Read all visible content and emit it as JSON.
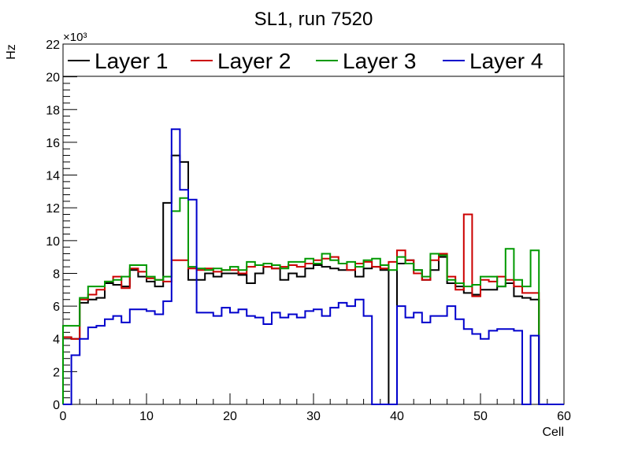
{
  "chart_data": {
    "type": "line",
    "title": "SL1, run 7520",
    "xlabel": "Cell",
    "ylabel": "Hz",
    "y_multiplier": "×10³",
    "xlim": [
      0,
      60
    ],
    "ylim": [
      0,
      22
    ],
    "x_ticks": [
      0,
      10,
      20,
      30,
      40,
      50,
      60
    ],
    "y_ticks": [
      0,
      2,
      4,
      6,
      8,
      10,
      12,
      14,
      16,
      18,
      20,
      22
    ],
    "bin_width": 1,
    "x_start": 0,
    "legend_position": "top",
    "series": [
      {
        "name": "Layer 1",
        "color": "#000000",
        "values": [
          4.1,
          4.0,
          6.2,
          6.4,
          6.5,
          7.4,
          7.3,
          7.2,
          8.2,
          7.8,
          7.5,
          7.2,
          12.3,
          15.2,
          14.8,
          7.6,
          7.6,
          8.0,
          7.8,
          8.0,
          8.0,
          7.9,
          7.4,
          8.0,
          8.4,
          8.3,
          7.6,
          8.0,
          7.8,
          8.3,
          8.5,
          8.4,
          8.3,
          8.2,
          8.2,
          7.8,
          8.3,
          8.4,
          8.2,
          0.0,
          8.6,
          8.8,
          8.2,
          7.6,
          8.2,
          9.0,
          7.4,
          7.2,
          6.8,
          6.7,
          7.0,
          7.0,
          7.2,
          7.4,
          6.6,
          6.5,
          6.4,
          0,
          0,
          0
        ]
      },
      {
        "name": "Layer 2",
        "color": "#cc0000",
        "values": [
          4.1,
          4.0,
          6.4,
          6.7,
          7.0,
          7.5,
          7.8,
          7.1,
          8.3,
          8.1,
          7.7,
          7.6,
          7.5,
          8.8,
          8.8,
          8.3,
          8.2,
          8.3,
          8.1,
          8.2,
          8.2,
          8.0,
          8.4,
          8.5,
          8.4,
          8.3,
          8.4,
          8.5,
          8.4,
          8.6,
          8.8,
          8.9,
          9.0,
          8.6,
          8.2,
          8.6,
          8.7,
          8.4,
          8.3,
          8.7,
          9.4,
          8.8,
          8.0,
          7.6,
          8.8,
          9.2,
          7.8,
          7.0,
          11.6,
          6.6,
          7.6,
          7.5,
          7.8,
          7.6,
          7.2,
          6.8,
          6.8,
          0,
          0,
          0
        ]
      },
      {
        "name": "Layer 3",
        "color": "#009900",
        "values": [
          4.8,
          4.8,
          6.5,
          7.2,
          7.2,
          7.5,
          7.6,
          7.8,
          8.5,
          8.5,
          7.8,
          7.6,
          7.8,
          11.8,
          12.6,
          8.4,
          8.3,
          8.2,
          8.3,
          8.2,
          8.4,
          8.2,
          8.7,
          8.5,
          8.6,
          8.5,
          8.3,
          8.7,
          8.7,
          8.9,
          8.6,
          9.2,
          8.8,
          8.6,
          8.7,
          8.4,
          8.8,
          8.9,
          8.5,
          8.2,
          9.0,
          8.6,
          8.2,
          7.8,
          9.2,
          9.1,
          7.6,
          7.4,
          7.2,
          7.3,
          7.8,
          7.8,
          7.2,
          9.5,
          7.6,
          7.2,
          9.4,
          0,
          0,
          0
        ]
      },
      {
        "name": "Layer 4",
        "color": "#0000cc",
        "values": [
          0.0,
          3.0,
          4.0,
          4.7,
          4.8,
          5.2,
          5.4,
          5.0,
          5.8,
          5.8,
          5.7,
          5.5,
          6.3,
          16.8,
          13.1,
          12.5,
          5.6,
          5.6,
          5.4,
          5.9,
          5.6,
          5.8,
          5.4,
          5.3,
          4.9,
          5.6,
          5.3,
          5.5,
          5.3,
          5.7,
          5.8,
          5.4,
          5.9,
          6.2,
          6.0,
          6.4,
          5.4,
          0.0,
          0.0,
          0.0,
          6.0,
          5.3,
          5.6,
          5.0,
          5.4,
          5.4,
          6.0,
          5.2,
          4.6,
          4.3,
          4.0,
          4.5,
          4.6,
          4.6,
          4.5,
          0.0,
          4.2,
          0,
          0,
          0
        ]
      }
    ]
  }
}
